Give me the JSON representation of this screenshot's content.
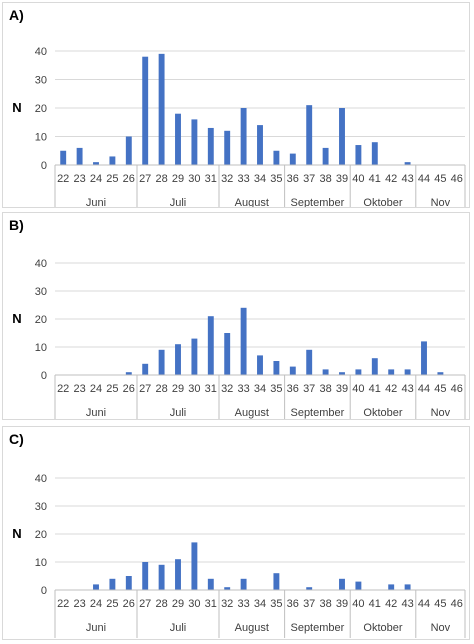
{
  "chart_data": [
    {
      "type": "bar",
      "panel_label": "A)",
      "ylabel": "N",
      "ylim": [
        0,
        40
      ],
      "yticks": [
        0,
        10,
        20,
        30,
        40
      ],
      "grid": true,
      "categories": [
        "22",
        "23",
        "24",
        "25",
        "26",
        "27",
        "28",
        "29",
        "30",
        "31",
        "32",
        "33",
        "34",
        "35",
        "36",
        "37",
        "38",
        "39",
        "40",
        "41",
        "42",
        "43",
        "44",
        "45",
        "46"
      ],
      "values": [
        5,
        6,
        1,
        3,
        10,
        38,
        39,
        18,
        16,
        13,
        12,
        20,
        14,
        5,
        4,
        21,
        6,
        20,
        7,
        8,
        0,
        1,
        0,
        0,
        0
      ],
      "months": [
        {
          "name": "Juni",
          "span": [
            0,
            4
          ]
        },
        {
          "name": "Juli",
          "span": [
            5,
            9
          ]
        },
        {
          "name": "August",
          "span": [
            10,
            13
          ]
        },
        {
          "name": "September",
          "span": [
            14,
            17
          ]
        },
        {
          "name": "Oktober",
          "span": [
            18,
            21
          ]
        },
        {
          "name": "Nov",
          "span": [
            22,
            24
          ]
        }
      ],
      "bar_color": "#4472c4"
    },
    {
      "type": "bar",
      "panel_label": "B)",
      "ylabel": "N",
      "ylim": [
        0,
        40
      ],
      "yticks": [
        0,
        10,
        20,
        30,
        40
      ],
      "grid": true,
      "categories": [
        "22",
        "23",
        "24",
        "25",
        "26",
        "27",
        "28",
        "29",
        "30",
        "31",
        "32",
        "33",
        "34",
        "35",
        "36",
        "37",
        "38",
        "39",
        "40",
        "41",
        "42",
        "43",
        "44",
        "45",
        "46"
      ],
      "values": [
        0,
        0,
        0,
        0,
        1,
        4,
        9,
        11,
        13,
        21,
        15,
        24,
        7,
        5,
        3,
        9,
        2,
        1,
        2,
        6,
        2,
        2,
        12,
        1,
        0
      ],
      "months": [
        {
          "name": "Juni",
          "span": [
            0,
            4
          ]
        },
        {
          "name": "Juli",
          "span": [
            5,
            9
          ]
        },
        {
          "name": "August",
          "span": [
            10,
            13
          ]
        },
        {
          "name": "September",
          "span": [
            14,
            17
          ]
        },
        {
          "name": "Oktober",
          "span": [
            18,
            21
          ]
        },
        {
          "name": "Nov",
          "span": [
            22,
            24
          ]
        }
      ],
      "bar_color": "#4472c4"
    },
    {
      "type": "bar",
      "panel_label": "C)",
      "ylabel": "N",
      "ylim": [
        0,
        40
      ],
      "yticks": [
        0,
        10,
        20,
        30,
        40
      ],
      "grid": true,
      "categories": [
        "22",
        "23",
        "24",
        "25",
        "26",
        "27",
        "28",
        "29",
        "30",
        "31",
        "32",
        "33",
        "34",
        "35",
        "36",
        "37",
        "38",
        "39",
        "40",
        "41",
        "42",
        "43",
        "44",
        "45",
        "46"
      ],
      "values": [
        0,
        0,
        2,
        4,
        5,
        10,
        9,
        11,
        17,
        4,
        1,
        4,
        0,
        6,
        0,
        1,
        0,
        4,
        3,
        0,
        2,
        2,
        0,
        0,
        0
      ],
      "months": [
        {
          "name": "Juni",
          "span": [
            0,
            4
          ]
        },
        {
          "name": "Juli",
          "span": [
            5,
            9
          ]
        },
        {
          "name": "August",
          "span": [
            10,
            13
          ]
        },
        {
          "name": "September",
          "span": [
            14,
            17
          ]
        },
        {
          "name": "Oktober",
          "span": [
            18,
            21
          ]
        },
        {
          "name": "Nov",
          "span": [
            22,
            24
          ]
        }
      ],
      "bar_color": "#4472c4"
    }
  ]
}
